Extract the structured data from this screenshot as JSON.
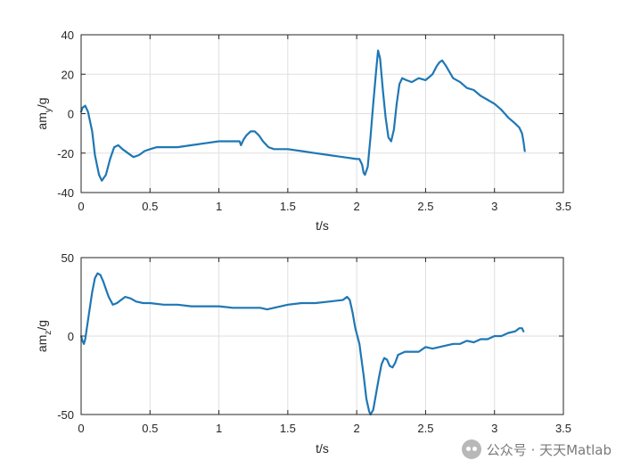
{
  "chart_data": [
    {
      "type": "line",
      "xlabel": "t/s",
      "ylabel_main": "am",
      "ylabel_sub": "y",
      "ylabel_suffix": "/g",
      "xlim": [
        0,
        3.5
      ],
      "ylim": [
        -40,
        40
      ],
      "xticks": [
        0,
        0.5,
        1,
        1.5,
        2,
        2.5,
        3,
        3.5
      ],
      "xtick_labels": [
        "0",
        "0.5",
        "1",
        "1.5",
        "2",
        "2.5",
        "3",
        "3.5"
      ],
      "yticks": [
        -40,
        -20,
        0,
        20,
        40
      ],
      "ytick_labels": [
        "-40",
        "-20",
        "0",
        "20",
        "40"
      ],
      "grid": true,
      "color": "#1f77b4",
      "series": [
        {
          "x": [
            0,
            0.01,
            0.03,
            0.05,
            0.08,
            0.1,
            0.13,
            0.15,
            0.18,
            0.21,
            0.24,
            0.27,
            0.3,
            0.34,
            0.38,
            0.42,
            0.46,
            0.5,
            0.55,
            0.6,
            0.7,
            0.8,
            0.9,
            1.0,
            1.1,
            1.15,
            1.16,
            1.18,
            1.2,
            1.23,
            1.26,
            1.29,
            1.32,
            1.36,
            1.4,
            1.45,
            1.5,
            1.6,
            1.7,
            1.8,
            1.9,
            2.0,
            2.02,
            2.04,
            2.05,
            2.06,
            2.08,
            2.1,
            2.12,
            2.14,
            2.155,
            2.17,
            2.19,
            2.21,
            2.23,
            2.25,
            2.27,
            2.29,
            2.31,
            2.33,
            2.36,
            2.4,
            2.45,
            2.5,
            2.55,
            2.58,
            2.6,
            2.62,
            2.65,
            2.7,
            2.75,
            2.8,
            2.85,
            2.9,
            2.95,
            3.0,
            3.05,
            3.1,
            3.15,
            3.18,
            3.2,
            3.21,
            3.22
          ],
          "y": [
            1,
            3,
            4,
            1,
            -9,
            -21,
            -31,
            -34,
            -31,
            -23,
            -17,
            -16,
            -18,
            -20,
            -22,
            -21,
            -19,
            -18,
            -17,
            -17,
            -17,
            -16,
            -15,
            -14,
            -14,
            -14,
            -16,
            -13,
            -11,
            -9,
            -9,
            -11,
            -14,
            -17,
            -18,
            -18,
            -18,
            -19,
            -20,
            -21,
            -22,
            -23,
            -23,
            -26,
            -30,
            -31,
            -27,
            -12,
            5,
            21,
            32,
            28,
            12,
            -2,
            -12,
            -14,
            -8,
            5,
            15,
            18,
            17,
            16,
            18,
            17,
            20,
            24,
            26,
            27,
            24,
            18,
            16,
            13,
            12,
            9,
            7,
            5,
            2,
            -2,
            -5,
            -7,
            -10,
            -14,
            -19
          ]
        }
      ]
    },
    {
      "type": "line",
      "xlabel": "t/s",
      "ylabel_main": "am",
      "ylabel_sub": "z",
      "ylabel_suffix": "/g",
      "xlim": [
        0,
        3.5
      ],
      "ylim": [
        -50,
        50
      ],
      "xticks": [
        0,
        0.5,
        1,
        1.5,
        2,
        2.5,
        3,
        3.5
      ],
      "xtick_labels": [
        "0",
        "0.5",
        "1",
        "1.5",
        "2",
        "2.5",
        "3",
        "3.5"
      ],
      "yticks": [
        -50,
        0,
        50
      ],
      "ytick_labels": [
        "-50",
        "0",
        "50"
      ],
      "grid": true,
      "color": "#1f77b4",
      "series": [
        {
          "x": [
            0,
            0.01,
            0.02,
            0.03,
            0.05,
            0.08,
            0.1,
            0.12,
            0.14,
            0.16,
            0.18,
            0.2,
            0.23,
            0.26,
            0.29,
            0.32,
            0.36,
            0.4,
            0.45,
            0.5,
            0.6,
            0.7,
            0.8,
            0.9,
            1.0,
            1.1,
            1.2,
            1.3,
            1.35,
            1.4,
            1.5,
            1.6,
            1.7,
            1.8,
            1.9,
            1.93,
            1.95,
            1.97,
            1.99,
            2.02,
            2.05,
            2.07,
            2.09,
            2.1,
            2.12,
            2.14,
            2.16,
            2.18,
            2.2,
            2.22,
            2.24,
            2.26,
            2.28,
            2.3,
            2.35,
            2.4,
            2.45,
            2.5,
            2.55,
            2.6,
            2.65,
            2.7,
            2.75,
            2.8,
            2.85,
            2.9,
            2.95,
            3.0,
            3.05,
            3.1,
            3.15,
            3.18,
            3.2,
            3.21
          ],
          "y": [
            0,
            -3,
            -5,
            -2,
            10,
            28,
            37,
            40,
            39,
            35,
            30,
            25,
            20,
            21,
            23,
            25,
            24,
            22,
            21,
            21,
            20,
            20,
            19,
            19,
            19,
            18,
            18,
            18,
            17,
            18,
            20,
            21,
            21,
            22,
            23,
            25,
            23,
            15,
            5,
            -5,
            -25,
            -40,
            -48,
            -50,
            -47,
            -37,
            -27,
            -18,
            -14,
            -15,
            -19,
            -20,
            -17,
            -12,
            -10,
            -10,
            -10,
            -7,
            -8,
            -7,
            -6,
            -5,
            -5,
            -3,
            -4,
            -2,
            -2,
            0,
            0,
            2,
            3,
            5,
            5,
            3
          ]
        }
      ]
    }
  ],
  "watermark": {
    "icon": "wechat-icon",
    "text": "公众号 · 天天Matlab"
  }
}
